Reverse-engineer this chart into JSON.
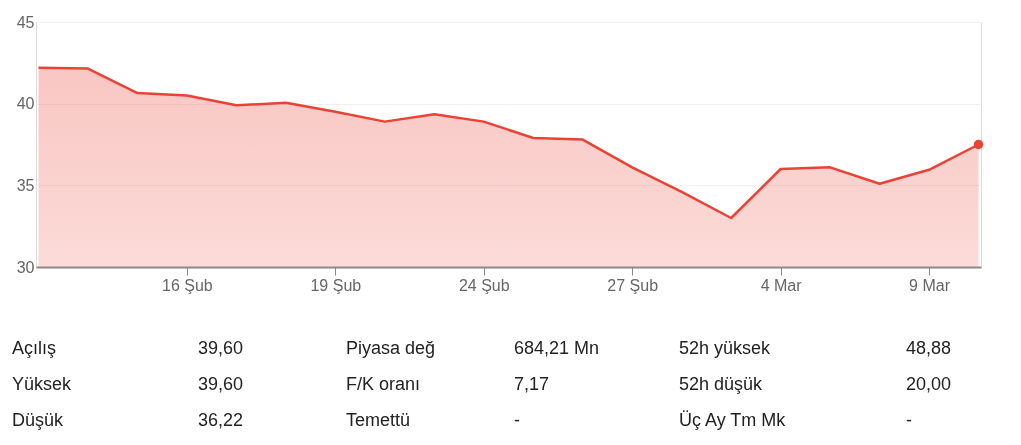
{
  "chart_data": {
    "type": "area",
    "categories": [
      null,
      null,
      null,
      "16 Şub",
      null,
      null,
      "19 Şub",
      null,
      null,
      "24 Şub",
      null,
      null,
      "27 Şub",
      null,
      null,
      "4 Mar",
      null,
      null,
      "9 Mar",
      null
    ],
    "series": [
      {
        "color": "#ea4335",
        "values": [
          42.2,
          42.15,
          40.65,
          40.5,
          39.9,
          40.05,
          39.5,
          38.9,
          39.35,
          38.9,
          37.9,
          37.8,
          36.1,
          34.6,
          33.0,
          36.0,
          36.1,
          35.1,
          35.95,
          37.5
        ]
      }
    ],
    "ylim": [
      30,
      45
    ],
    "yticks": [
      30,
      35,
      40,
      45
    ],
    "grid": "y",
    "annotations": [
      "Açılış",
      "39,60",
      "Piyasa değ",
      "684,21 Mn",
      "52h yüksek",
      "48,88",
      "Yüksek",
      "39,60",
      "F/K oranı",
      "7,17",
      "52h düşük",
      "20,00",
      "Düşük",
      "36,22",
      "Temettü",
      "-",
      "Üç Ay Tm Mk",
      "-"
    ]
  }
}
